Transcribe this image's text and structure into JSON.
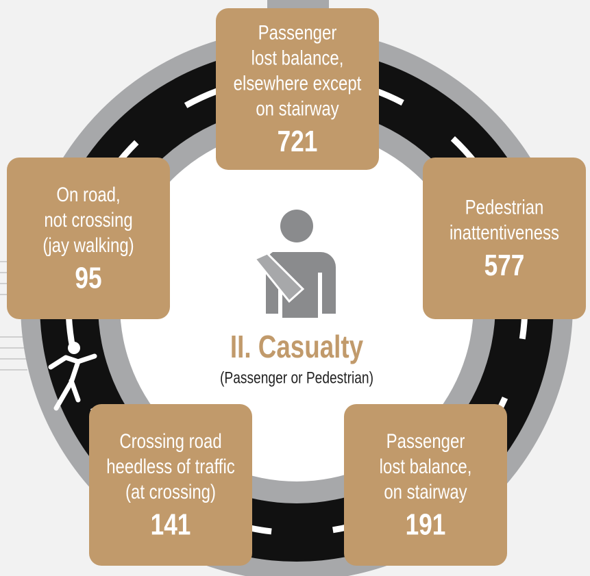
{
  "title": "II. Casualty",
  "subtitle": "(Passenger or Pedestrian)",
  "nodes": [
    {
      "label": [
        "Passenger",
        "lost balance,",
        "elsewhere except",
        "on stairway"
      ],
      "value": "721"
    },
    {
      "label": [
        "Pedestrian",
        "inattentiveness"
      ],
      "value": "577"
    },
    {
      "label": [
        "Passenger",
        "lost balance,",
        "on stairway"
      ],
      "value": "191"
    },
    {
      "label": [
        "Crossing road",
        "heedless of traffic",
        "(at crossing)"
      ],
      "value": "141"
    },
    {
      "label": [
        "On road,",
        "not crossing",
        "(jay walking)"
      ],
      "value": "95"
    }
  ]
}
